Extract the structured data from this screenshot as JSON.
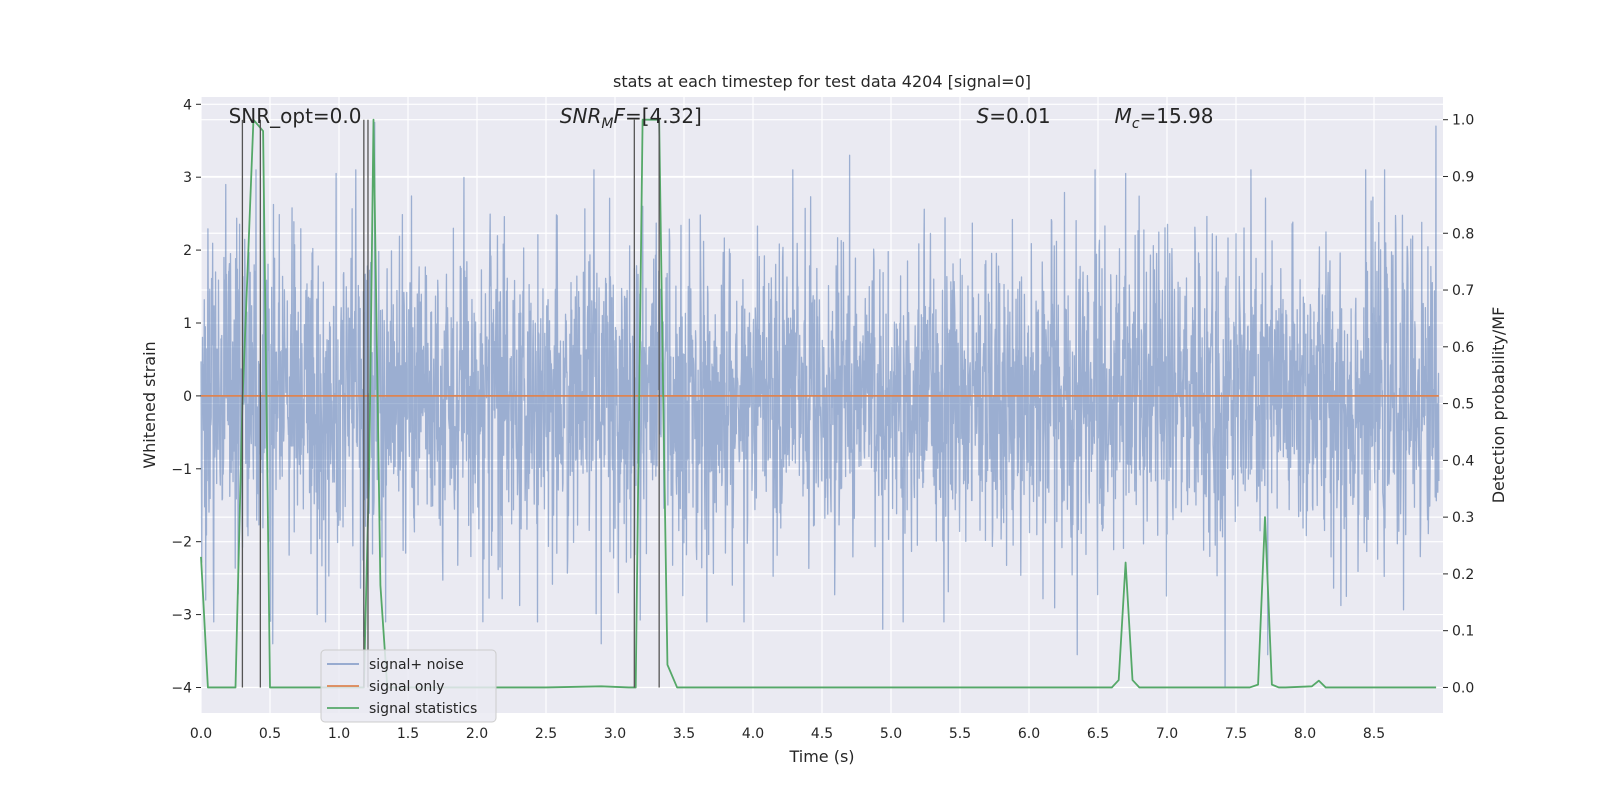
{
  "chart_data": {
    "type": "line",
    "title": "stats at each timestep for test data 4204 [signal=0]",
    "xlabel": "Time (s)",
    "ylabel_left": "Whitened strain",
    "ylabel_right": "Detection probability/MF",
    "xlim": [
      0.0,
      9.0
    ],
    "ylim_left": [
      -4.35,
      4.1
    ],
    "ylim_right": [
      -0.045,
      1.04
    ],
    "x_ticks": [
      "0.0",
      "0.5",
      "1.0",
      "1.5",
      "2.0",
      "2.5",
      "3.0",
      "3.5",
      "4.0",
      "4.5",
      "5.0",
      "5.5",
      "6.0",
      "6.5",
      "7.0",
      "7.5",
      "8.0",
      "8.5"
    ],
    "y_left_ticks": [
      "−4",
      "−3",
      "−2",
      "−1",
      "0",
      "1",
      "2",
      "3",
      "4"
    ],
    "y_right_ticks": [
      "0.0",
      "0.1",
      "0.2",
      "0.3",
      "0.4",
      "0.5",
      "0.6",
      "0.7",
      "0.8",
      "0.9",
      "1.0"
    ],
    "grid": true,
    "legend_position": "lower-left",
    "annotations": [
      {
        "parts": [
          {
            "text": "SNR_opt=0.0"
          }
        ],
        "x": 0.2
      },
      {
        "parts": [
          {
            "text": "SNR",
            "italic": true
          },
          {
            "text": "M",
            "italic": true,
            "sub": true
          },
          {
            "text": "F",
            "italic": true
          },
          {
            "text": "=[4.32]"
          }
        ],
        "x": 2.6
      },
      {
        "parts": [
          {
            "text": "S",
            "italic": true
          },
          {
            "text": "=0.01"
          }
        ],
        "x": 5.62
      },
      {
        "parts": [
          {
            "text": "M",
            "italic": true
          },
          {
            "text": "c",
            "italic": true,
            "sub": true
          },
          {
            "text": "=15.98"
          }
        ],
        "x": 6.62
      }
    ],
    "vertical_lines": [
      0.3,
      0.43,
      1.18,
      1.21,
      3.14,
      3.32
    ],
    "series": [
      {
        "name": "signal+ noise",
        "color": "#4c72b0",
        "axis": "left",
        "kind": "noise",
        "sigma": 1.0,
        "peaks": [
          {
            "x": 0.18,
            "y": 2.9
          },
          {
            "x": 0.98,
            "y": 3.05
          },
          {
            "x": 1.26,
            "y": 3.75
          },
          {
            "x": 3.2,
            "y": 2.6
          },
          {
            "x": 4.7,
            "y": 3.3
          },
          {
            "x": 6.7,
            "y": 3.05
          },
          {
            "x": 8.95,
            "y": 3.7
          },
          {
            "x": 0.52,
            "y": -3.4
          },
          {
            "x": 1.18,
            "y": -3.3
          },
          {
            "x": 2.9,
            "y": -3.4
          },
          {
            "x": 4.94,
            "y": -3.2
          },
          {
            "x": 6.35,
            "y": -3.55
          },
          {
            "x": 7.42,
            "y": -4.0
          },
          {
            "x": 7.73,
            "y": -3.55
          },
          {
            "x": 8.3,
            "y": -2.75
          }
        ]
      },
      {
        "name": "signal only",
        "color": "#dd8452",
        "axis": "left",
        "x": [
          0.0,
          8.97
        ],
        "y": [
          0.0,
          0.0
        ]
      },
      {
        "name": "signal statistics",
        "color": "#55a868",
        "axis": "right",
        "x": [
          0.0,
          0.05,
          0.2,
          0.25,
          0.3,
          0.38,
          0.45,
          0.5,
          0.55,
          1.1,
          1.18,
          1.22,
          1.25,
          1.3,
          1.35,
          1.5,
          2.5,
          2.9,
          3.1,
          3.15,
          3.2,
          3.25,
          3.32,
          3.35,
          3.38,
          3.45,
          4.0,
          6.0,
          6.6,
          6.65,
          6.7,
          6.75,
          6.8,
          6.85,
          7.6,
          7.66,
          7.71,
          7.76,
          7.81,
          7.86,
          8.05,
          8.1,
          8.15,
          8.2,
          8.25,
          8.95
        ],
        "y": [
          0.23,
          0.0,
          0.0,
          0.0,
          0.5,
          1.0,
          0.98,
          0.0,
          0.0,
          0.0,
          0.0,
          0.4,
          1.0,
          0.18,
          0.0,
          0.0,
          0.0,
          0.002,
          0.0,
          0.0,
          1.0,
          1.0,
          1.0,
          0.5,
          0.04,
          0.0,
          0.0,
          0.0,
          0.0,
          0.013,
          0.22,
          0.013,
          0.0,
          0.0,
          0.0,
          0.005,
          0.3,
          0.005,
          0.0,
          0.0,
          0.002,
          0.012,
          0.0,
          0.0,
          0.0,
          0.0
        ]
      }
    ]
  }
}
